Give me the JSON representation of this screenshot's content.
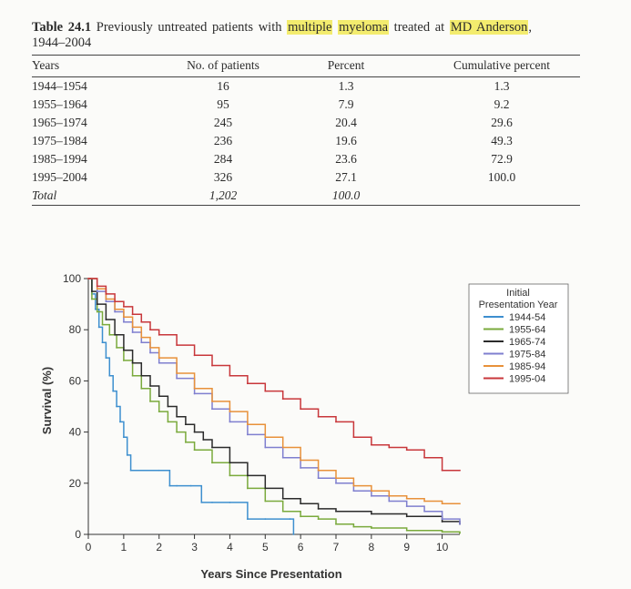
{
  "caption": {
    "label": "Table 24.1",
    "text_before": "Previously untreated patients with",
    "highlight_1": "multiple",
    "highlight_2": "myeloma",
    "text_mid": "treated at",
    "highlight_3": "MD Anderson",
    "text_end": ",",
    "years": "1944–2004"
  },
  "table": {
    "headers": [
      "Years",
      "No. of patients",
      "Percent",
      "Cumulative percent"
    ],
    "rows": [
      [
        "1944–1954",
        "16",
        "1.3",
        "1.3"
      ],
      [
        "1955–1964",
        "95",
        "7.9",
        "9.2"
      ],
      [
        "1965–1974",
        "245",
        "20.4",
        "29.6"
      ],
      [
        "1975–1984",
        "236",
        "19.6",
        "49.3"
      ],
      [
        "1985–1994",
        "284",
        "23.6",
        "72.9"
      ],
      [
        "1995–2004",
        "326",
        "27.1",
        "100.0"
      ]
    ],
    "total": [
      "Total",
      "1,202",
      "100.0",
      ""
    ]
  },
  "chart_data": {
    "type": "line",
    "xlabel": "Years Since Presentation",
    "ylabel": "Survival (%)",
    "xlim": [
      0,
      10.5
    ],
    "ylim": [
      0,
      100
    ],
    "xticks": [
      0,
      1,
      2,
      3,
      4,
      5,
      6,
      7,
      8,
      9,
      10
    ],
    "yticks": [
      0,
      20,
      40,
      60,
      80,
      100
    ],
    "grid": false,
    "legend_position": "top-right",
    "legend_title": "Initial Presentation Year",
    "series": [
      {
        "name": "1944-54",
        "color": "#3d8fcf",
        "x": [
          0,
          0.1,
          0.2,
          0.3,
          0.4,
          0.5,
          0.6,
          0.7,
          0.8,
          0.9,
          1.0,
          1.1,
          1.2,
          2.0,
          2.3,
          2.5,
          2.9,
          3.2,
          3.5,
          4.0,
          4.5,
          5.0,
          5.7,
          5.8
        ],
        "y": [
          100,
          94,
          88,
          81,
          75,
          69,
          62,
          56,
          50,
          44,
          38,
          31,
          25,
          25,
          19,
          19,
          19,
          12.5,
          12.5,
          12.5,
          6,
          6,
          6,
          0
        ]
      },
      {
        "name": "1955-64",
        "color": "#7aaa3c",
        "x": [
          0,
          0.1,
          0.25,
          0.4,
          0.6,
          0.8,
          1.0,
          1.25,
          1.5,
          1.75,
          2.0,
          2.25,
          2.5,
          2.75,
          3.0,
          3.5,
          4.0,
          4.5,
          5.0,
          5.5,
          6.0,
          6.5,
          7.0,
          7.5,
          8.0,
          9.0,
          10.0,
          10.5
        ],
        "y": [
          100,
          92,
          87,
          82,
          78,
          73,
          68,
          62,
          57,
          52,
          48,
          44,
          40,
          36,
          33,
          28,
          23,
          18,
          13,
          9,
          7,
          6,
          4,
          3,
          2.5,
          1.5,
          1,
          0.5
        ]
      },
      {
        "name": "1965-74",
        "color": "#2b2b2b",
        "x": [
          0,
          0.1,
          0.25,
          0.5,
          0.75,
          1.0,
          1.25,
          1.5,
          1.75,
          2.0,
          2.25,
          2.5,
          2.75,
          3.0,
          3.25,
          3.5,
          4.0,
          4.5,
          5.0,
          5.5,
          6.0,
          6.5,
          7.0,
          8.0,
          9.0,
          10.0,
          10.5
        ],
        "y": [
          100,
          95,
          90,
          84,
          78,
          72,
          67,
          62,
          58,
          54,
          50,
          46,
          43,
          40,
          37,
          34,
          28,
          23,
          18,
          14,
          12,
          10,
          9,
          8,
          7,
          5,
          4
        ]
      },
      {
        "name": "1975-84",
        "color": "#7f7fcf",
        "x": [
          0,
          0.25,
          0.5,
          0.75,
          1.0,
          1.25,
          1.5,
          1.75,
          2.0,
          2.5,
          3.0,
          3.5,
          4.0,
          4.5,
          5.0,
          5.5,
          6.0,
          6.5,
          7.0,
          7.5,
          8.0,
          8.5,
          9.0,
          9.5,
          10.0,
          10.5
        ],
        "y": [
          100,
          95,
          91,
          87,
          83,
          79,
          75,
          71,
          67,
          61,
          55,
          49,
          44,
          39,
          34,
          30,
          26,
          22,
          20,
          17,
          15,
          13,
          11,
          9,
          6,
          4
        ]
      },
      {
        "name": "1985-94",
        "color": "#e8913a",
        "x": [
          0,
          0.25,
          0.5,
          0.75,
          1.0,
          1.25,
          1.5,
          1.75,
          2.0,
          2.5,
          3.0,
          3.5,
          4.0,
          4.5,
          5.0,
          5.5,
          6.0,
          6.5,
          7.0,
          7.5,
          8.0,
          8.5,
          9.0,
          9.5,
          10.0,
          10.5
        ],
        "y": [
          100,
          96,
          92,
          88,
          85,
          81,
          77,
          73,
          69,
          63,
          57,
          52,
          48,
          43,
          38,
          34,
          29,
          25,
          22,
          19,
          17,
          15,
          14,
          13,
          12,
          12
        ]
      },
      {
        "name": "1995-04",
        "color": "#c8373b",
        "x": [
          0,
          0.25,
          0.5,
          0.75,
          1.0,
          1.25,
          1.5,
          1.75,
          2.0,
          2.5,
          3.0,
          3.5,
          4.0,
          4.5,
          5.0,
          5.5,
          6.0,
          6.5,
          7.0,
          7.5,
          8.0,
          8.5,
          9.0,
          9.5,
          10.0,
          10.5
        ],
        "y": [
          100,
          97,
          94,
          91,
          89,
          86,
          83,
          80,
          78,
          74,
          70,
          66,
          62,
          59,
          56,
          53,
          49,
          46,
          44,
          38,
          35,
          34,
          33,
          30,
          25,
          25
        ]
      }
    ]
  }
}
